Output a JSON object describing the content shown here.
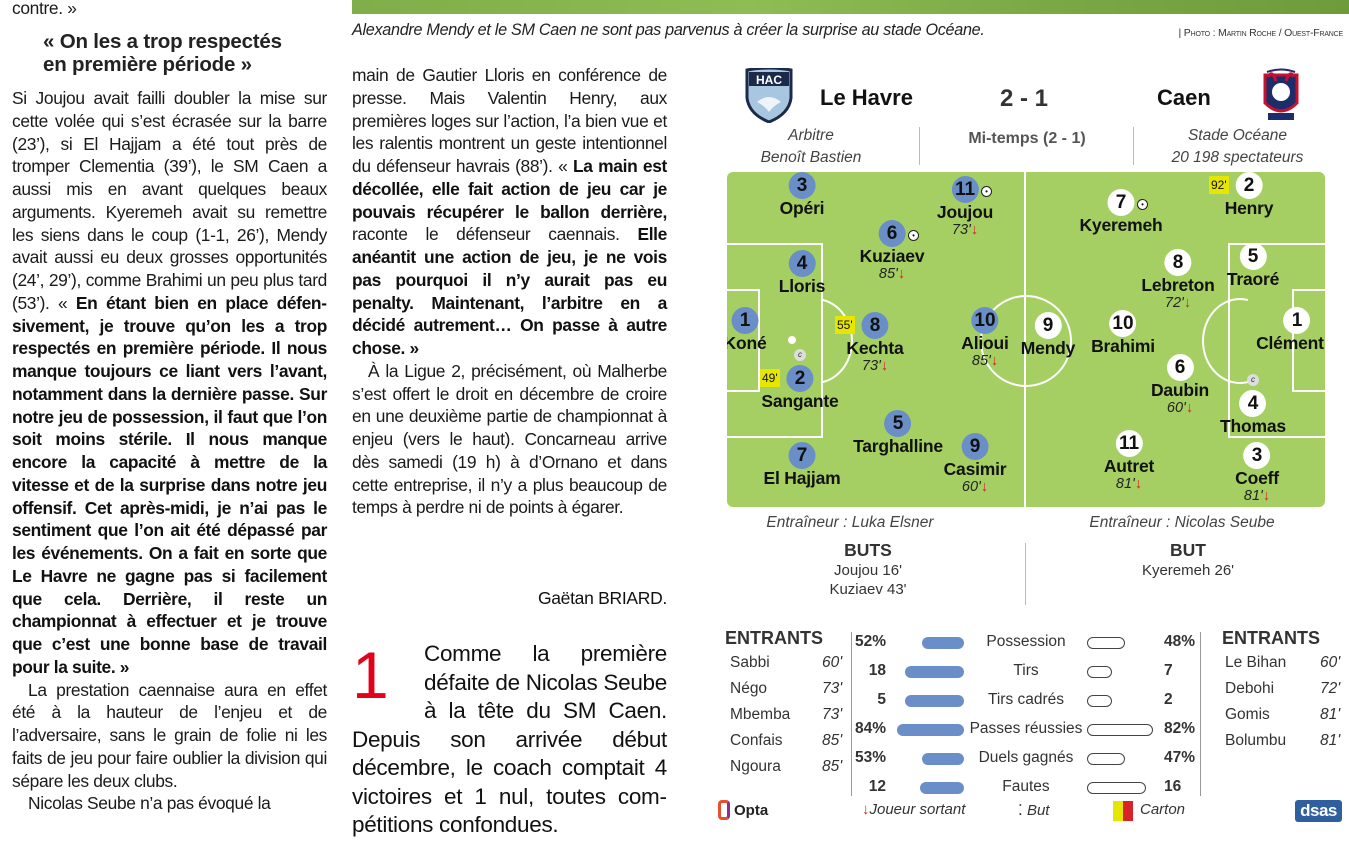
{
  "column1": {
    "top_line": "contre. »",
    "heading": [
      "« On les a trop respectés",
      "en première période »"
    ],
    "paragraphs": [
      {
        "indent": false,
        "segments": [
          {
            "t": "Si Joujou avait failli doubler la mise sur cette volée qui s’est écrasée sur la barre (23’), si El Hajjam a été tout près de tromper Clementia (39’), le SM Caen a aussi mis en avant quel­ques beaux arguments. Kyeremeh avait su remettre les siens dans le coup (1-1, 26’), Mendy avait aussi eu deux grosses opportunités (24’, 29’), comme Brahimi un peu plus tard (53’). « ",
            "b": false
          },
          {
            "t": "En étant bien en place défen­sivement, je trouve qu’on les a trop respectés en première période. Il nous manque toujours ce liant vers l’avant, notamment dans la dernière passe. Sur notre jeu de possession, il faut que l’on soit moins stérile. Il nous manque encore la capacité à mettre de la vitesse et de la surprise dans notre jeu offensif. Cet après-midi, je n’ai pas le sentiment que l’on ait été dépassé par les événements. On a fait en sorte que Le Havre ne gagne pas si facilement que cela. Derrière, il reste un championnat à effectuer et je trouve que c’est une bonne base de travail pour la suite. »",
            "b": true
          }
        ]
      },
      {
        "indent": true,
        "segments": [
          {
            "t": "La prestation caennaise aura en effet été à la hauteur de l’enjeu et de l’adversaire, sans le grain de folie ni les faits de jeu pour faire oublier la division qui sépare les deux clubs.",
            "b": false
          }
        ]
      },
      {
        "indent": true,
        "segments": [
          {
            "t": "Nicolas Seube n’a pas évoqué la",
            "b": false
          }
        ]
      }
    ]
  },
  "column2": {
    "paragraphs": [
      {
        "indent": false,
        "segments": [
          {
            "t": "main de Gautier Lloris en conférence de presse. Mais Valentin Henry, aux premières loges sur l’action, l’a bien vue et les ralentis montrent un geste intentionnel du défenseur havrais (88’). « ",
            "b": false
          },
          {
            "t": "La main est décollée, elle fait action de jeu car je pouvais récupé­rer le ballon derrière,",
            "b": true
          },
          {
            "t": " raconte le défenseur caennais. ",
            "b": false
          },
          {
            "t": "Elle anéantit une action de jeu, je ne vois pas pourquoi il n’y aurait pas eu penalty. Maintenant, l’arbitre en a décidé autrement… On passe à autre cho­se. »",
            "b": true
          }
        ]
      },
      {
        "indent": true,
        "segments": [
          {
            "t": "À la Ligue 2, précisément, où Mal­herbe s’est offert le droit en décem­bre de croire en une deuxième partie de championnat à enjeu (vers le haut). Concarneau arrive dès samedi (19 h) à d’Ornano et dans cette entre­prise, il n’y a plus beaucoup de temps à perdre ni de points à égarer.",
            "b": false
          }
        ]
      }
    ],
    "signature": "Gaëtan BRIARD.",
    "box": {
      "number": "1",
      "text": "Comme la première défaite de Nicolas Seu­be à la tête du SM Caen. Depuis son arrivée début décembre, le coach comptait 4 victoires et 1 nul, toutes com­pétitions confondues."
    }
  },
  "photo": {
    "caption": "Alexandre Mendy et le SM Caen ne sont pas parvenus à créer la surprise au stade Océane.",
    "credit": "| Photo : Martin Roche / Ouest-France"
  },
  "match": {
    "home": {
      "name": "Le Havre",
      "logo_text": "HAC",
      "color": "#6a8fc8"
    },
    "away": {
      "name": "Caen",
      "logo_text": "CAEN"
    },
    "score": "2 - 1",
    "halftime": "Mi-temps (2 - 1)",
    "referee_label": "Arbitre",
    "referee": "Benoît Bastien",
    "stadium": "Stade Océane",
    "attendance": "20 198 spectateurs",
    "home_coach": "Entraîneur : Luka Elsner",
    "away_coach": "Entraîneur : Nicolas Seube",
    "home_goals_title": "BUTS",
    "home_goals": [
      "Joujou 16'",
      "Kuziaev 43'"
    ],
    "away_goals_title": "BUT",
    "away_goals": [
      "Kyeremeh 26'"
    ]
  },
  "lineups": {
    "home": [
      {
        "num": "3",
        "name": "Opéri"
      },
      {
        "num": "11",
        "name": "Joujou",
        "out": "73'",
        "goal": true
      },
      {
        "num": "6",
        "name": "Kuziaev",
        "out": "85'",
        "goal": true
      },
      {
        "num": "4",
        "name": "Lloris"
      },
      {
        "num": "1",
        "name": "Koné"
      },
      {
        "num": "8",
        "name": "Kechta",
        "out": "73'",
        "card": "55'"
      },
      {
        "num": "10",
        "name": "Alioui",
        "out": "85'"
      },
      {
        "num": "2",
        "name": "Sangante",
        "card": "49'",
        "captain": true
      },
      {
        "num": "5",
        "name": "Targhalline"
      },
      {
        "num": "9",
        "name": "Casimir",
        "out": "60'"
      },
      {
        "num": "7",
        "name": "El Hajjam"
      }
    ],
    "away": [
      {
        "num": "7",
        "name": "Kyeremeh",
        "goal": true
      },
      {
        "num": "2",
        "name": "Henry",
        "card": "92'"
      },
      {
        "num": "8",
        "name": "Lebreton",
        "out": "72'"
      },
      {
        "num": "5",
        "name": "Traoré"
      },
      {
        "num": "9",
        "name": "Mendy"
      },
      {
        "num": "10",
        "name": "Brahimi"
      },
      {
        "num": "1",
        "name": "Clémentia"
      },
      {
        "num": "6",
        "name": "Daubin",
        "out": "60'"
      },
      {
        "num": "4",
        "name": "Thomas",
        "captain": true
      },
      {
        "num": "11",
        "name": "Autret",
        "out": "81'"
      },
      {
        "num": "3",
        "name": "Coeff",
        "out": "81'"
      }
    ],
    "captain_mark": "c",
    "out_arrow": "↓"
  },
  "substitutes": {
    "title": "ENTRANTS",
    "home": [
      {
        "name": "Sabbi",
        "min": "60'"
      },
      {
        "name": "Négo",
        "min": "73'"
      },
      {
        "name": "Mbemba",
        "min": "73'"
      },
      {
        "name": "Confais",
        "min": "85'"
      },
      {
        "name": "Ngoura",
        "min": "85'"
      }
    ],
    "away": [
      {
        "name": "Le Bihan",
        "min": "60'"
      },
      {
        "name": "Debohi",
        "min": "72'"
      },
      {
        "name": "Gomis",
        "min": "81'"
      },
      {
        "name": "Bolumbu",
        "min": "81'"
      }
    ]
  },
  "stats": [
    {
      "label": "Possession",
      "home": "52%",
      "away": "48%",
      "h": 52,
      "a": 48,
      "pct": true
    },
    {
      "label": "Tirs",
      "home": "18",
      "away": "7",
      "h": 18,
      "a": 7,
      "pct": false
    },
    {
      "label": "Tirs cadrés",
      "home": "5",
      "away": "2",
      "h": 5,
      "a": 2,
      "pct": false
    },
    {
      "label": "Passes réussies",
      "home": "84%",
      "away": "82%",
      "h": 84,
      "a": 82,
      "pct": true
    },
    {
      "label": "Duels gagnés",
      "home": "53%",
      "away": "47%",
      "h": 53,
      "a": 47,
      "pct": true
    },
    {
      "label": "Fautes",
      "home": "12",
      "away": "16",
      "h": 12,
      "a": 16,
      "pct": false
    }
  ],
  "legend": {
    "source": "Opta",
    "sub_out": "Joueur sortant",
    "goal": "But",
    "card": "Carton",
    "agency": "dsas"
  },
  "colors": {
    "pitch": "#a6cf63",
    "home": "#6a8fc8",
    "card": "#e6e600",
    "arrow": "#d8232a",
    "red_number": "#e3001b"
  }
}
